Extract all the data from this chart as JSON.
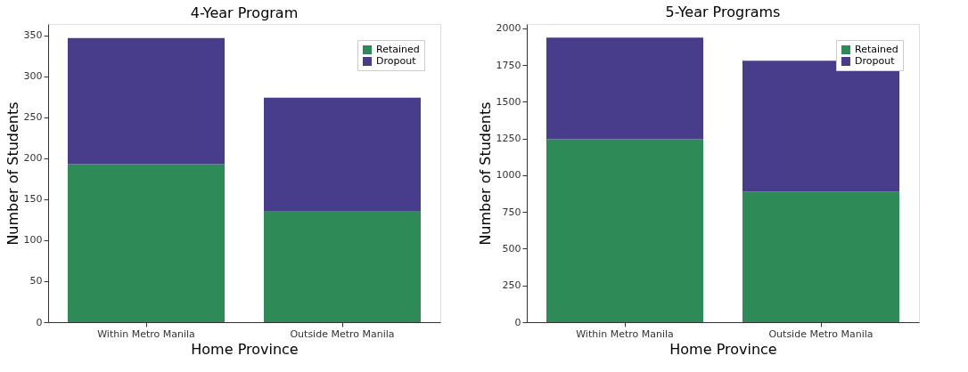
{
  "chart_data": [
    {
      "type": "bar",
      "title": "4-Year Program",
      "xlabel": "Home Province",
      "ylabel": "Number of Students",
      "categories": [
        "Within Metro Manila",
        "Outside Metro Manila"
      ],
      "stacked": true,
      "series": [
        {
          "name": "Retained",
          "color": "#2e8b57",
          "values": [
            193,
            135
          ]
        },
        {
          "name": "Dropout",
          "color": "#483d8b",
          "values": [
            154,
            139
          ]
        }
      ],
      "ylim": [
        0,
        364
      ],
      "yticks": [
        0,
        50,
        100,
        150,
        200,
        250,
        300,
        350
      ],
      "grid": false,
      "legend": "top right"
    },
    {
      "type": "bar",
      "title": "5-Year Programs",
      "xlabel": "Home Province",
      "ylabel": "Number of Students",
      "categories": [
        "Within Metro Manila",
        "Outside Metro Manila"
      ],
      "stacked": true,
      "series": [
        {
          "name": "Retained",
          "color": "#2e8b57",
          "values": [
            1246,
            890
          ]
        },
        {
          "name": "Dropout",
          "color": "#483d8b",
          "values": [
            692,
            890
          ]
        }
      ],
      "ylim": [
        0,
        2030
      ],
      "yticks": [
        0,
        250,
        500,
        750,
        1000,
        1250,
        1500,
        1750,
        2000
      ],
      "grid": false,
      "legend": "top right"
    }
  ]
}
